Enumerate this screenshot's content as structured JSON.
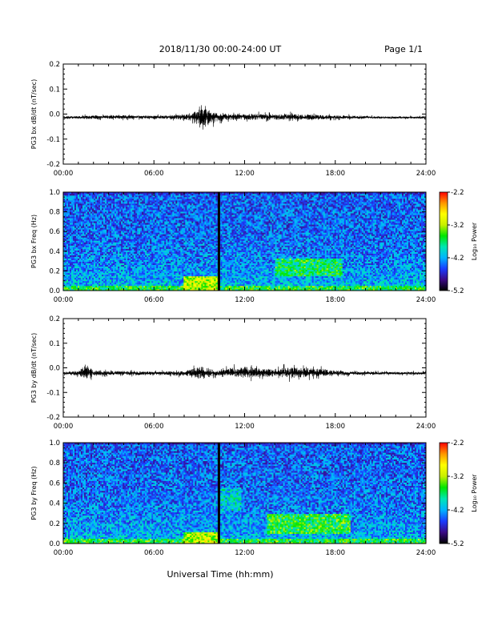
{
  "header": {
    "title": "2018/11/30  00:00-24:00 UT",
    "page_label": "Page 1/1"
  },
  "footer": {
    "xlabel": "Universal Time (hh:mm)"
  },
  "colors": {
    "background": "#ffffff",
    "trace": "#000000",
    "data_gap_marker": "#000000",
    "colormap": [
      "#000000",
      "#3b0a85",
      "#1a3cff",
      "#00b4ff",
      "#00e6b4",
      "#00e600",
      "#c8f000",
      "#ffff00",
      "#ff9600",
      "#ff0000"
    ]
  },
  "chart_data": [
    {
      "type": "line",
      "ylabel": "PG3 bx dB/dt (nT/sec)",
      "ylim": [
        -0.2,
        0.2
      ],
      "y_ticks": [
        "0.2",
        "0.1",
        "0.0",
        "-0.1",
        "-0.2"
      ],
      "x_ticks": [
        "00:00",
        "06:00",
        "12:00",
        "18:00",
        "24:00"
      ],
      "xlim_hours": [
        0,
        24
      ],
      "series": [
        {
          "x_hours": [
            0,
            1,
            2,
            3,
            4,
            5,
            6,
            7,
            8,
            8.5,
            9,
            9.3,
            9.6,
            10,
            10.5,
            11,
            12,
            13,
            14,
            15,
            16,
            17,
            18,
            19,
            20,
            21,
            22,
            23,
            24
          ],
          "center": [
            -0.013,
            -0.013,
            -0.012,
            -0.012,
            -0.011,
            -0.011,
            -0.012,
            -0.012,
            -0.012,
            -0.013,
            -0.012,
            -0.01,
            -0.012,
            -0.011,
            -0.01,
            -0.01,
            -0.01,
            -0.011,
            -0.011,
            -0.012,
            -0.012,
            -0.013,
            -0.013,
            -0.013,
            -0.013,
            -0.014,
            -0.014,
            -0.014,
            -0.014
          ],
          "upper": [
            -0.005,
            -0.002,
            0.0,
            -0.001,
            0.0,
            -0.002,
            -0.001,
            0.0,
            0.005,
            0.015,
            0.045,
            0.052,
            0.04,
            0.02,
            0.01,
            0.005,
            0.01,
            0.01,
            0.008,
            0.01,
            0.008,
            0.004,
            0.0,
            0.0,
            -0.003,
            -0.005,
            -0.006,
            -0.006,
            -0.006
          ],
          "lower": [
            -0.022,
            -0.024,
            -0.028,
            -0.025,
            -0.026,
            -0.024,
            -0.025,
            -0.026,
            -0.03,
            -0.04,
            -0.06,
            -0.09,
            -0.07,
            -0.048,
            -0.038,
            -0.035,
            -0.034,
            -0.034,
            -0.033,
            -0.03,
            -0.03,
            -0.027,
            -0.025,
            -0.023,
            -0.022,
            -0.021,
            -0.021,
            -0.021,
            -0.021
          ]
        }
      ]
    },
    {
      "type": "heatmap",
      "ylabel": "PG3 bx Freq (Hz)",
      "ylim": [
        0.0,
        1.0
      ],
      "y_ticks": [
        "1.0",
        "0.8",
        "0.6",
        "0.4",
        "0.2",
        "0.0"
      ],
      "x_ticks": [
        "00:00",
        "06:00",
        "12:00",
        "18:00",
        "24:00"
      ],
      "xlim_hours": [
        0,
        24
      ],
      "colorbar": {
        "label": "Log₁₀ Power",
        "ticks": [
          "-2.2",
          "-3.2",
          "-4.2",
          "-5.2"
        ],
        "range": [
          -5.2,
          -2.2
        ]
      },
      "data_gap_hours": 10.3,
      "features": [
        {
          "note": "low-frequency enhancement",
          "hours": [
            8,
            10.3
          ],
          "freq_hz": [
            0.0,
            0.15
          ],
          "log_power": -3.1
        },
        {
          "note": "band enhancement",
          "hours": [
            14,
            18.5
          ],
          "freq_hz": [
            0.15,
            0.32
          ],
          "log_power": -3.6
        },
        {
          "note": "low-frequency band",
          "hours": [
            0,
            24
          ],
          "freq_hz": [
            0.0,
            0.05
          ],
          "log_power": -3.5
        },
        {
          "note": "background",
          "hours": [
            0,
            24
          ],
          "freq_hz": [
            0.0,
            1.0
          ],
          "log_power": -4.3
        }
      ]
    },
    {
      "type": "line",
      "ylabel": "PG3 by dB/dt (nT/sec)",
      "ylim": [
        -0.2,
        0.2
      ],
      "y_ticks": [
        "0.2",
        "0.1",
        "0.0",
        "-0.1",
        "-0.2"
      ],
      "x_ticks": [
        "00:00",
        "06:00",
        "12:00",
        "18:00",
        "24:00"
      ],
      "xlim_hours": [
        0,
        24
      ],
      "series": [
        {
          "x_hours": [
            0,
            1,
            1.5,
            2,
            3,
            4,
            5,
            6,
            7,
            8,
            8.5,
            9,
            9.5,
            10,
            10.5,
            11,
            12,
            13,
            14,
            15,
            16,
            17,
            18,
            19,
            20,
            21,
            22,
            23,
            24
          ],
          "center": [
            -0.022,
            -0.022,
            -0.02,
            -0.021,
            -0.021,
            -0.021,
            -0.022,
            -0.022,
            -0.022,
            -0.021,
            -0.021,
            -0.02,
            -0.02,
            -0.021,
            -0.021,
            -0.02,
            -0.02,
            -0.02,
            -0.02,
            -0.02,
            -0.021,
            -0.021,
            -0.021,
            -0.022,
            -0.022,
            -0.022,
            -0.022,
            -0.022,
            -0.022
          ],
          "upper": [
            -0.012,
            -0.005,
            0.045,
            0.0,
            -0.008,
            -0.005,
            -0.008,
            -0.01,
            -0.008,
            -0.005,
            0.005,
            0.03,
            0.02,
            0.0,
            -0.002,
            0.015,
            0.025,
            0.01,
            0.01,
            0.02,
            0.015,
            0.01,
            0.0,
            -0.008,
            -0.01,
            -0.012,
            -0.012,
            -0.012,
            -0.012
          ],
          "lower": [
            -0.032,
            -0.04,
            -0.07,
            -0.045,
            -0.035,
            -0.036,
            -0.036,
            -0.034,
            -0.035,
            -0.045,
            -0.055,
            -0.065,
            -0.06,
            -0.045,
            -0.042,
            -0.05,
            -0.058,
            -0.05,
            -0.05,
            -0.058,
            -0.055,
            -0.045,
            -0.04,
            -0.035,
            -0.033,
            -0.032,
            -0.032,
            -0.032,
            -0.032
          ]
        }
      ]
    },
    {
      "type": "heatmap",
      "ylabel": "PG3 by Freq (Hz)",
      "ylim": [
        0.0,
        1.0
      ],
      "y_ticks": [
        "1.0",
        "0.8",
        "0.6",
        "0.4",
        "0.2",
        "0.0"
      ],
      "x_ticks": [
        "00:00",
        "06:00",
        "12:00",
        "18:00",
        "24:00"
      ],
      "xlim_hours": [
        0,
        24
      ],
      "colorbar": {
        "label": "Log₁₀ Power",
        "ticks": [
          "-2.2",
          "-3.2",
          "-4.2",
          "-5.2"
        ],
        "range": [
          -5.2,
          -2.2
        ]
      },
      "data_gap_hours": 10.3,
      "features": [
        {
          "note": "low-frequency enhancement",
          "hours": [
            8,
            10.3
          ],
          "freq_hz": [
            0.0,
            0.12
          ],
          "log_power": -3.1
        },
        {
          "note": "post-gap patch",
          "hours": [
            10.4,
            11.8
          ],
          "freq_hz": [
            0.32,
            0.55
          ],
          "log_power": -3.9
        },
        {
          "note": "band enhancement",
          "hours": [
            13.5,
            19
          ],
          "freq_hz": [
            0.1,
            0.3
          ],
          "log_power": -3.5
        },
        {
          "note": "low-frequency band",
          "hours": [
            0,
            24
          ],
          "freq_hz": [
            0.0,
            0.05
          ],
          "log_power": -3.5
        },
        {
          "note": "background",
          "hours": [
            0,
            24
          ],
          "freq_hz": [
            0.0,
            1.0
          ],
          "log_power": -4.3
        }
      ]
    }
  ]
}
